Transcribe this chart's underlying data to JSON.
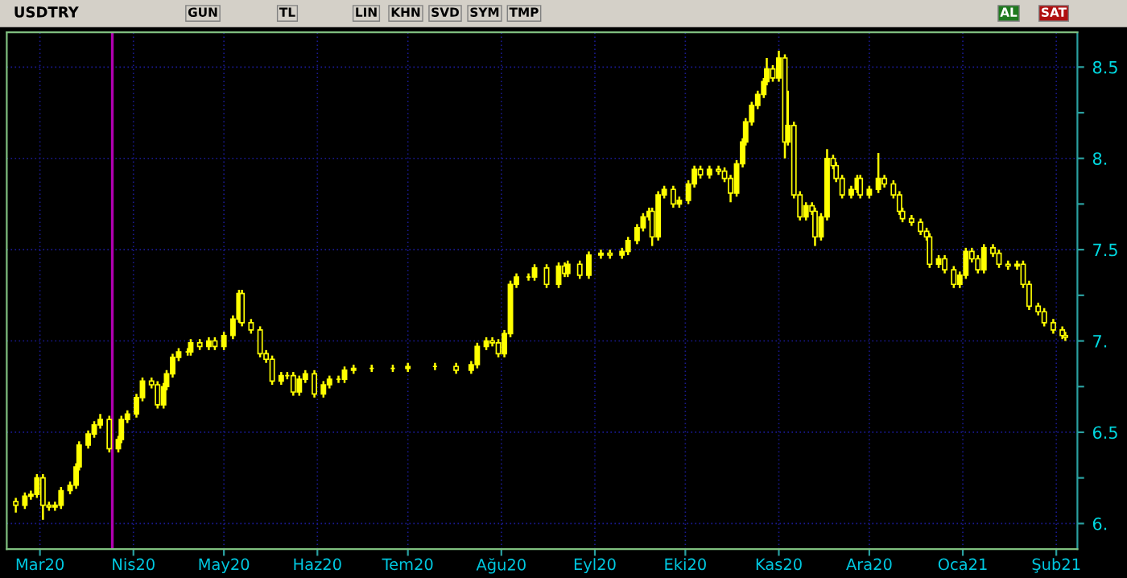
{
  "chart_data": {
    "type": "candlestick",
    "title": "USDTRY",
    "annotations": [
      "GUN",
      "TL",
      "LIN",
      "KHN",
      "SVD",
      "SYM",
      "TMP",
      "AL",
      "SAT"
    ],
    "color": "#ffff00",
    "x": [
      "2020-02-22",
      "2020-02-25",
      "2020-02-27",
      "2020-02-29",
      "2020-03-02",
      "2020-03-04",
      "2020-03-06",
      "2020-03-08",
      "2020-03-11",
      "2020-03-13",
      "2020-03-14",
      "2020-03-17",
      "2020-03-19",
      "2020-03-21",
      "2020-03-24",
      "2020-03-27",
      "2020-03-28",
      "2020-03-30",
      "2020-04-02",
      "2020-04-04",
      "2020-04-07",
      "2020-04-09",
      "2020-04-11",
      "2020-04-12",
      "2020-04-14",
      "2020-04-16",
      "2020-04-19",
      "2020-04-20",
      "2020-04-23",
      "2020-04-26",
      "2020-04-28",
      "2020-05-01",
      "2020-05-04",
      "2020-05-06",
      "2020-05-07",
      "2020-05-10",
      "2020-05-13",
      "2020-05-15",
      "2020-05-17",
      "2020-05-20",
      "2020-05-22",
      "2020-05-24",
      "2020-05-26",
      "2020-05-28",
      "2020-05-31",
      "2020-06-03",
      "2020-06-05",
      "2020-06-08",
      "2020-06-10",
      "2020-06-13",
      "2020-06-19",
      "2020-06-26",
      "2020-07-01",
      "2020-07-10",
      "2020-07-17",
      "2020-07-22",
      "2020-07-24",
      "2020-07-27",
      "2020-07-29",
      "2020-07-31",
      "2020-08-02",
      "2020-08-04",
      "2020-08-06",
      "2020-08-10",
      "2020-08-12",
      "2020-08-16",
      "2020-08-20",
      "2020-08-22",
      "2020-08-23",
      "2020-08-27",
      "2020-08-30",
      "2020-09-03",
      "2020-09-06",
      "2020-09-10",
      "2020-09-12",
      "2020-09-15",
      "2020-09-17",
      "2020-09-19",
      "2020-09-20",
      "2020-09-22",
      "2020-09-24",
      "2020-09-27",
      "2020-09-29",
      "2020-10-02",
      "2020-10-04",
      "2020-10-06",
      "2020-10-09",
      "2020-10-12",
      "2020-10-14",
      "2020-10-16",
      "2020-10-18",
      "2020-10-20",
      "2020-10-21",
      "2020-10-23",
      "2020-10-25",
      "2020-10-27",
      "2020-10-28",
      "2020-10-30",
      "2020-11-01",
      "2020-11-03",
      "2020-11-04",
      "2020-11-06",
      "2020-11-08",
      "2020-11-10",
      "2020-11-12",
      "2020-11-13",
      "2020-11-15",
      "2020-11-17",
      "2020-11-19",
      "2020-11-20",
      "2020-11-22",
      "2020-11-25",
      "2020-11-27",
      "2020-11-28",
      "2020-12-01",
      "2020-12-04",
      "2020-12-06",
      "2020-12-09",
      "2020-12-11",
      "2020-12-12",
      "2020-12-15",
      "2020-12-18",
      "2020-12-20",
      "2020-12-21",
      "2020-12-24",
      "2020-12-26",
      "2020-12-29",
      "2020-12-31",
      "2021-01-02",
      "2021-01-04",
      "2021-01-06",
      "2021-01-08",
      "2021-01-11",
      "2021-01-13",
      "2021-01-16",
      "2021-01-19",
      "2021-01-21",
      "2021-01-23",
      "2021-01-26",
      "2021-01-28",
      "2021-01-31",
      "2021-02-03",
      "2021-02-04"
    ],
    "ohlc": [
      [
        6.12,
        6.14,
        6.06,
        6.1
      ],
      [
        6.1,
        6.17,
        6.08,
        6.15
      ],
      [
        6.15,
        6.18,
        6.13,
        6.16
      ],
      [
        6.16,
        6.27,
        6.14,
        6.25
      ],
      [
        6.25,
        6.27,
        6.02,
        6.1
      ],
      [
        6.1,
        6.12,
        6.07,
        6.09
      ],
      [
        6.09,
        6.12,
        6.07,
        6.1
      ],
      [
        6.1,
        6.2,
        6.08,
        6.18
      ],
      [
        6.18,
        6.23,
        6.16,
        6.21
      ],
      [
        6.21,
        6.33,
        6.19,
        6.31
      ],
      [
        6.31,
        6.45,
        6.29,
        6.43
      ],
      [
        6.43,
        6.51,
        6.41,
        6.49
      ],
      [
        6.49,
        6.56,
        6.47,
        6.54
      ],
      [
        6.54,
        6.6,
        6.52,
        6.57
      ],
      [
        6.57,
        6.59,
        6.39,
        6.41
      ],
      [
        6.41,
        6.48,
        6.39,
        6.46
      ],
      [
        6.46,
        6.59,
        6.44,
        6.57
      ],
      [
        6.57,
        6.62,
        6.55,
        6.6
      ],
      [
        6.6,
        6.71,
        6.58,
        6.69
      ],
      [
        6.69,
        6.8,
        6.67,
        6.78
      ],
      [
        6.78,
        6.8,
        6.74,
        6.76
      ],
      [
        6.76,
        6.78,
        6.63,
        6.65
      ],
      [
        6.65,
        6.77,
        6.63,
        6.75
      ],
      [
        6.75,
        6.84,
        6.73,
        6.82
      ],
      [
        6.82,
        6.93,
        6.8,
        6.91
      ],
      [
        6.91,
        6.96,
        6.89,
        6.94
      ],
      [
        6.94,
        6.96,
        6.92,
        6.94
      ],
      [
        6.94,
        7.01,
        6.92,
        6.99
      ],
      [
        6.99,
        7.01,
        6.95,
        6.97
      ],
      [
        6.97,
        7.02,
        6.95,
        7.0
      ],
      [
        7.0,
        7.02,
        6.95,
        6.97
      ],
      [
        6.97,
        7.05,
        6.95,
        7.03
      ],
      [
        7.03,
        7.14,
        7.01,
        7.12
      ],
      [
        7.12,
        7.28,
        7.1,
        7.26
      ],
      [
        7.26,
        7.28,
        7.08,
        7.1
      ],
      [
        7.1,
        7.12,
        7.04,
        7.06
      ],
      [
        7.06,
        7.08,
        6.91,
        6.93
      ],
      [
        6.93,
        6.95,
        6.88,
        6.9
      ],
      [
        6.9,
        6.92,
        6.76,
        6.78
      ],
      [
        6.78,
        6.83,
        6.76,
        6.81
      ],
      [
        6.81,
        6.83,
        6.79,
        6.81
      ],
      [
        6.81,
        6.83,
        6.7,
        6.72
      ],
      [
        6.72,
        6.81,
        6.7,
        6.79
      ],
      [
        6.79,
        6.84,
        6.77,
        6.82
      ],
      [
        6.82,
        6.84,
        6.69,
        6.71
      ],
      [
        6.71,
        6.78,
        6.69,
        6.76
      ],
      [
        6.76,
        6.81,
        6.74,
        6.79
      ],
      [
        6.79,
        6.81,
        6.77,
        6.79
      ],
      [
        6.79,
        6.86,
        6.77,
        6.84
      ],
      [
        6.84,
        6.87,
        6.82,
        6.85
      ],
      [
        6.85,
        6.87,
        6.83,
        6.85
      ],
      [
        6.85,
        6.87,
        6.83,
        6.85
      ],
      [
        6.85,
        6.88,
        6.83,
        6.86
      ],
      [
        6.86,
        6.88,
        6.84,
        6.86
      ],
      [
        6.86,
        6.88,
        6.82,
        6.84
      ],
      [
        6.84,
        6.89,
        6.82,
        6.87
      ],
      [
        6.87,
        6.99,
        6.85,
        6.97
      ],
      [
        6.97,
        7.02,
        6.95,
        7.0
      ],
      [
        7.0,
        7.02,
        6.97,
        6.99
      ],
      [
        6.99,
        7.01,
        6.91,
        6.93
      ],
      [
        6.93,
        7.06,
        6.91,
        7.04
      ],
      [
        7.04,
        7.33,
        7.02,
        7.31
      ],
      [
        7.31,
        7.37,
        7.29,
        7.35
      ],
      [
        7.35,
        7.37,
        7.33,
        7.35
      ],
      [
        7.35,
        7.42,
        7.33,
        7.4
      ],
      [
        7.4,
        7.42,
        7.29,
        7.31
      ],
      [
        7.31,
        7.43,
        7.29,
        7.41
      ],
      [
        7.41,
        7.43,
        7.35,
        7.37
      ],
      [
        7.37,
        7.44,
        7.35,
        7.42
      ],
      [
        7.42,
        7.44,
        7.34,
        7.36
      ],
      [
        7.36,
        7.49,
        7.34,
        7.47
      ],
      [
        7.47,
        7.5,
        7.45,
        7.48
      ],
      [
        7.48,
        7.5,
        7.45,
        7.47
      ],
      [
        7.47,
        7.51,
        7.45,
        7.49
      ],
      [
        7.49,
        7.57,
        7.47,
        7.55
      ],
      [
        7.55,
        7.64,
        7.53,
        7.62
      ],
      [
        7.62,
        7.7,
        7.6,
        7.68
      ],
      [
        7.68,
        7.73,
        7.66,
        7.71
      ],
      [
        7.71,
        7.73,
        7.52,
        7.57
      ],
      [
        7.57,
        7.82,
        7.55,
        7.8
      ],
      [
        7.8,
        7.85,
        7.78,
        7.83
      ],
      [
        7.83,
        7.85,
        7.73,
        7.75
      ],
      [
        7.75,
        7.79,
        7.73,
        7.77
      ],
      [
        7.77,
        7.88,
        7.75,
        7.86
      ],
      [
        7.86,
        7.96,
        7.84,
        7.94
      ],
      [
        7.94,
        7.96,
        7.89,
        7.91
      ],
      [
        7.91,
        7.96,
        7.89,
        7.94
      ],
      [
        7.94,
        7.96,
        7.91,
        7.93
      ],
      [
        7.93,
        7.95,
        7.87,
        7.89
      ],
      [
        7.89,
        7.91,
        7.76,
        7.81
      ],
      [
        7.81,
        7.99,
        7.79,
        7.97
      ],
      [
        7.97,
        8.11,
        7.95,
        8.09
      ],
      [
        8.09,
        8.22,
        8.07,
        8.2
      ],
      [
        8.2,
        8.31,
        8.18,
        8.29
      ],
      [
        8.29,
        8.37,
        8.27,
        8.35
      ],
      [
        8.35,
        8.44,
        8.33,
        8.42
      ],
      [
        8.42,
        8.55,
        8.4,
        8.49
      ],
      [
        8.49,
        8.51,
        8.42,
        8.44
      ],
      [
        8.44,
        8.59,
        8.42,
        8.55
      ],
      [
        8.55,
        8.57,
        8.0,
        8.09
      ],
      [
        8.09,
        8.37,
        8.07,
        8.18
      ],
      [
        8.18,
        8.2,
        7.78,
        7.8
      ],
      [
        7.8,
        7.82,
        7.66,
        7.68
      ],
      [
        7.68,
        7.76,
        7.66,
        7.74
      ],
      [
        7.74,
        7.76,
        7.69,
        7.71
      ],
      [
        7.71,
        7.73,
        7.52,
        7.57
      ],
      [
        7.57,
        7.7,
        7.55,
        7.68
      ],
      [
        7.68,
        8.05,
        7.66,
        8.0
      ],
      [
        8.0,
        8.02,
        7.94,
        7.96
      ],
      [
        7.96,
        7.98,
        7.87,
        7.89
      ],
      [
        7.89,
        7.91,
        7.78,
        7.8
      ],
      [
        7.8,
        7.85,
        7.78,
        7.83
      ],
      [
        7.83,
        7.91,
        7.81,
        7.89
      ],
      [
        7.89,
        7.91,
        7.78,
        7.8
      ],
      [
        7.8,
        7.85,
        7.78,
        7.83
      ],
      [
        7.83,
        8.03,
        7.81,
        7.89
      ],
      [
        7.89,
        7.91,
        7.84,
        7.86
      ],
      [
        7.86,
        7.88,
        7.78,
        7.8
      ],
      [
        7.8,
        7.82,
        7.69,
        7.71
      ],
      [
        7.71,
        7.73,
        7.65,
        7.67
      ],
      [
        7.67,
        7.69,
        7.63,
        7.65
      ],
      [
        7.65,
        7.67,
        7.58,
        7.6
      ],
      [
        7.6,
        7.62,
        7.55,
        7.57
      ],
      [
        7.57,
        7.59,
        7.4,
        7.42
      ],
      [
        7.42,
        7.47,
        7.4,
        7.45
      ],
      [
        7.45,
        7.47,
        7.37,
        7.39
      ],
      [
        7.39,
        7.41,
        7.29,
        7.31
      ],
      [
        7.31,
        7.38,
        7.29,
        7.36
      ],
      [
        7.36,
        7.51,
        7.34,
        7.49
      ],
      [
        7.49,
        7.51,
        7.43,
        7.45
      ],
      [
        7.45,
        7.47,
        7.37,
        7.39
      ],
      [
        7.39,
        7.53,
        7.37,
        7.51
      ],
      [
        7.51,
        7.53,
        7.46,
        7.48
      ],
      [
        7.48,
        7.5,
        7.4,
        7.42
      ],
      [
        7.42,
        7.44,
        7.39,
        7.41
      ],
      [
        7.41,
        7.44,
        7.39,
        7.42
      ],
      [
        7.42,
        7.44,
        7.29,
        7.31
      ],
      [
        7.31,
        7.33,
        7.17,
        7.19
      ],
      [
        7.19,
        7.21,
        7.14,
        7.16
      ],
      [
        7.16,
        7.18,
        7.08,
        7.1
      ],
      [
        7.1,
        7.12,
        7.04,
        7.06
      ],
      [
        7.06,
        7.08,
        7.01,
        7.03
      ],
      [
        7.03,
        7.05,
        7.0,
        7.02
      ]
    ],
    "xlim": [
      "2020-02-19",
      "2021-02-08"
    ],
    "xticks": [
      {
        "value": "2020-03-01",
        "label": "Mar20"
      },
      {
        "value": "2020-04-01",
        "label": "Nis20"
      },
      {
        "value": "2020-05-01",
        "label": "May20"
      },
      {
        "value": "2020-06-01",
        "label": "Haz20"
      },
      {
        "value": "2020-07-01",
        "label": "Tem20"
      },
      {
        "value": "2020-08-01",
        "label": "Ağu20"
      },
      {
        "value": "2020-09-01",
        "label": "Eyl20"
      },
      {
        "value": "2020-10-01",
        "label": "Eki20"
      },
      {
        "value": "2020-11-01",
        "label": "Kas20"
      },
      {
        "value": "2020-12-01",
        "label": "Ara20"
      },
      {
        "value": "2021-01-01",
        "label": "Oca21"
      },
      {
        "value": "2021-02-01",
        "label": "Şub21"
      }
    ],
    "ylim": [
      5.86,
      8.69
    ],
    "yticks": [
      {
        "value": 6,
        "label": "6."
      },
      {
        "value": 6.25,
        "label": null
      },
      {
        "value": 6.5,
        "label": "6.5"
      },
      {
        "value": 6.75,
        "label": null
      },
      {
        "value": 7,
        "label": "7."
      },
      {
        "value": 7.25,
        "label": null
      },
      {
        "value": 7.5,
        "label": "7.5"
      },
      {
        "value": 7.75,
        "label": null
      },
      {
        "value": 8,
        "label": "8."
      },
      {
        "value": 8.25,
        "label": null
      },
      {
        "value": 8.5,
        "label": "8.5"
      }
    ],
    "ref_lines": [
      {
        "axis": "x",
        "value": "2020-03-25",
        "color": "#b000b0"
      }
    ],
    "grid": true
  }
}
